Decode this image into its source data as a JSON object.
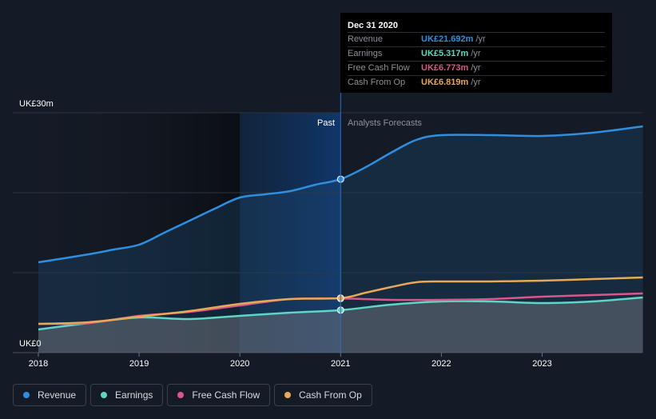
{
  "chart_data": {
    "type": "line",
    "y_top_label": "UK£30m",
    "y_bottom_label": "UK£0",
    "ylim": [
      0,
      30
    ],
    "xlim": [
      2018,
      2024
    ],
    "x_ticks": [
      "2018",
      "2019",
      "2020",
      "2021",
      "2022",
      "2023"
    ],
    "divider_x": 2021,
    "past_label": "Past",
    "forecast_label": "Analysts Forecasts",
    "series": [
      {
        "name": "Revenue",
        "color": "#2e8fe0",
        "points": [
          [
            2018,
            11.3
          ],
          [
            2018.5,
            12.3
          ],
          [
            2018.75,
            12.9
          ],
          [
            2019,
            13.5
          ],
          [
            2019.25,
            15.0
          ],
          [
            2019.5,
            16.5
          ],
          [
            2019.75,
            18.0
          ],
          [
            2020,
            19.4
          ],
          [
            2020.25,
            19.8
          ],
          [
            2020.5,
            20.2
          ],
          [
            2020.75,
            21.0
          ],
          [
            2021,
            21.692
          ],
          [
            2021.25,
            23.2
          ],
          [
            2021.5,
            25.0
          ],
          [
            2021.75,
            26.6
          ],
          [
            2022,
            27.2
          ],
          [
            2022.5,
            27.2
          ],
          [
            2023,
            27.1
          ],
          [
            2023.5,
            27.5
          ],
          [
            2024,
            28.3
          ]
        ]
      },
      {
        "name": "Earnings",
        "color": "#5fd5c3",
        "points": [
          [
            2018,
            2.9
          ],
          [
            2018.5,
            3.7
          ],
          [
            2019,
            4.4
          ],
          [
            2019.5,
            4.2
          ],
          [
            2020,
            4.6
          ],
          [
            2020.5,
            5.0
          ],
          [
            2021,
            5.317
          ],
          [
            2021.5,
            6.0
          ],
          [
            2022,
            6.4
          ],
          [
            2022.5,
            6.4
          ],
          [
            2023,
            6.2
          ],
          [
            2023.5,
            6.4
          ],
          [
            2024,
            6.9
          ]
        ]
      },
      {
        "name": "Free Cash Flow",
        "color": "#d9578a",
        "points": [
          [
            2018,
            3.6
          ],
          [
            2018.5,
            3.7
          ],
          [
            2019,
            4.6
          ],
          [
            2019.5,
            5.1
          ],
          [
            2020,
            5.9
          ],
          [
            2020.5,
            6.7
          ],
          [
            2021,
            6.773
          ],
          [
            2021.5,
            6.6
          ],
          [
            2022,
            6.6
          ],
          [
            2022.5,
            6.7
          ],
          [
            2023,
            7.0
          ],
          [
            2023.5,
            7.2
          ],
          [
            2024,
            7.4
          ]
        ]
      },
      {
        "name": "Cash From Op",
        "color": "#e8a858",
        "points": [
          [
            2018,
            3.6
          ],
          [
            2018.5,
            3.8
          ],
          [
            2019,
            4.5
          ],
          [
            2019.5,
            5.2
          ],
          [
            2020,
            6.1
          ],
          [
            2020.5,
            6.7
          ],
          [
            2021,
            6.819
          ],
          [
            2021.25,
            7.5
          ],
          [
            2021.5,
            8.2
          ],
          [
            2021.75,
            8.8
          ],
          [
            2022,
            8.9
          ],
          [
            2022.5,
            8.9
          ],
          [
            2023,
            9.0
          ],
          [
            2023.5,
            9.2
          ],
          [
            2024,
            9.4
          ]
        ]
      }
    ]
  },
  "tooltip": {
    "date": "Dec 31 2020",
    "unit": "/yr",
    "rows": [
      {
        "label": "Revenue",
        "value": "UK£21.692m",
        "color": "#2e8fe0"
      },
      {
        "label": "Earnings",
        "value": "UK£5.317m",
        "color": "#5fd5c3"
      },
      {
        "label": "Free Cash Flow",
        "value": "UK£6.773m",
        "color": "#d9578a"
      },
      {
        "label": "Cash From Op",
        "value": "UK£6.819m",
        "color": "#e8a858"
      }
    ]
  },
  "legend": [
    {
      "label": "Revenue",
      "color": "#2e8fe0"
    },
    {
      "label": "Earnings",
      "color": "#5fd5c3"
    },
    {
      "label": "Free Cash Flow",
      "color": "#d9578a"
    },
    {
      "label": "Cash From Op",
      "color": "#e8a858"
    }
  ]
}
